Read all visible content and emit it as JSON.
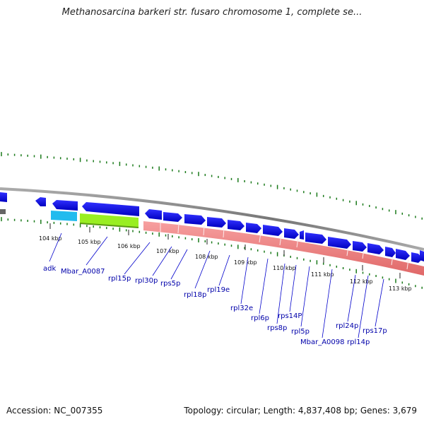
{
  "title": "Methanosarcina barkeri str. fusaro chromosome 1, complete se...",
  "footer": {
    "accession": "Accession: NC_007355",
    "summary": "Topology: circular; Length: 4,837,408 bp; Genes: 3,679"
  },
  "scale_labels": [
    "104 kbp",
    "105 kbp",
    "106 kbp",
    "107 kbp",
    "108 kbp",
    "109 kbp",
    "110 kbp",
    "111 kbp",
    "112 kbp",
    "113 kbp"
  ],
  "gene_labels": [
    "adk",
    "Mbar_A0087",
    "rpl15p",
    "rpl30p",
    "rps5p",
    "rpl18p",
    "rpl19e",
    "rpl32e",
    "rpl6p",
    "rps8p",
    "rps14P",
    "rpl5p",
    "Mbar_A0098",
    "rpl24p",
    "rpl14p",
    "rps17p"
  ],
  "colors": {
    "gene": "#0000ee",
    "operon": "#f08080",
    "backbone": "#888888",
    "tick": "#1a7a1a",
    "label": "#0000aa",
    "cyan_feature": "#22bbee",
    "green_feature": "#99ee22"
  }
}
